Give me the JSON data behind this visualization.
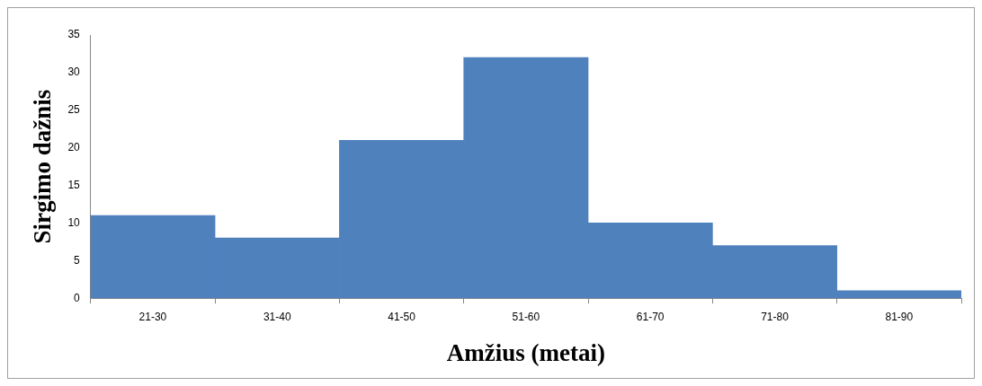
{
  "chart_data": {
    "type": "bar",
    "xlabel": "Amžius (metai)",
    "ylabel": "Sirgimo dažnis",
    "categories": [
      "21-30",
      "31-40",
      "41-50",
      "51-60",
      "61-70",
      "71-80",
      "81-90"
    ],
    "values": [
      11,
      8,
      21,
      32,
      10,
      7,
      1
    ],
    "color": "#4f81bd",
    "ylim": [
      0,
      35
    ],
    "yticks": [
      0,
      5,
      10,
      15,
      20,
      25,
      30,
      35
    ],
    "grid": false,
    "legend": false
  }
}
